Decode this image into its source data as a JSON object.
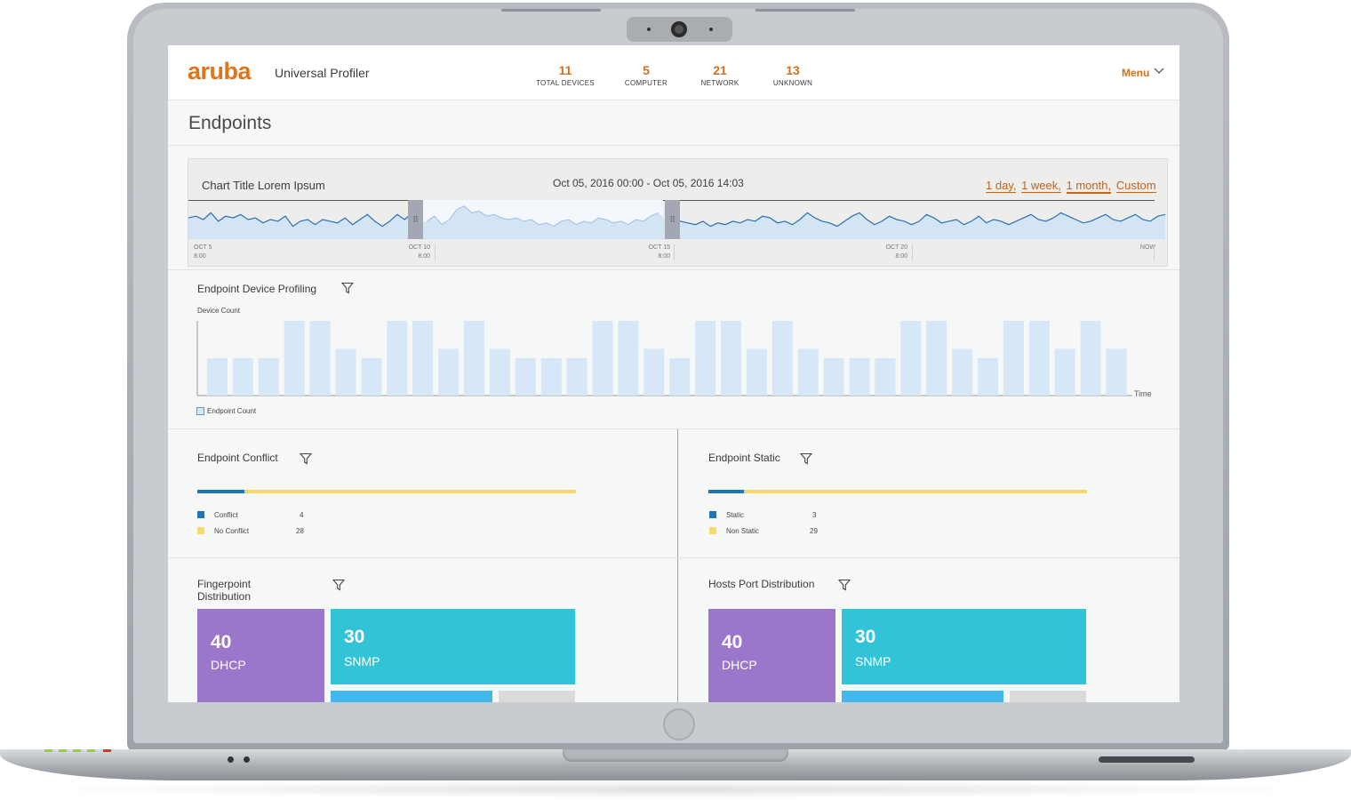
{
  "app": {
    "logo": "aruba",
    "title": "Universal Profiler"
  },
  "header_stats": [
    {
      "value": "11",
      "label": "TOTAL DEVICES"
    },
    {
      "value": "5",
      "label": "COMPUTER"
    },
    {
      "value": "21",
      "label": "NETWORK"
    },
    {
      "value": "13",
      "label": "UNKNOWN"
    }
  ],
  "menu": {
    "label": "Menu",
    "icon": "chevron-down-icon"
  },
  "page": {
    "title": "Endpoints"
  },
  "timeline": {
    "title": "Chart Title Lorem Ipsum",
    "range": "Oct 05, 2016 00:00 - Oct 05, 2016 14:03",
    "links": [
      "1 day,",
      "1 week,",
      "1 month,",
      "Custom"
    ],
    "active_link": "1 month,",
    "ticks": [
      {
        "l1": "OCT 5",
        "l2": "8:00"
      },
      {
        "l1": "OCT 10",
        "l2": "8:00"
      },
      {
        "l1": "OCT 15",
        "l2": "8:00"
      },
      {
        "l1": "OCT 20",
        "l2": "8:00"
      },
      {
        "l1": "NOW",
        "l2": ""
      }
    ],
    "colors": {
      "line": "#2a6fb3",
      "fill": "#d3e4f5",
      "selection": "#f4f8fc",
      "handle": "#a3a7b3"
    }
  },
  "profiling": {
    "title": "Endpoint Device Profiling",
    "ylabel": "Device Count",
    "xlabel": "Time",
    "legend": "Endpoint Count",
    "bar_color": "#d6e7f8"
  },
  "conflict": {
    "title": "Endpoint Conflict",
    "items": [
      {
        "label": "Conflict",
        "value": "4",
        "color": "#1b75bc"
      },
      {
        "label": "No Conflict",
        "value": "28",
        "color": "#f6d96b"
      }
    ]
  },
  "static": {
    "title": "Endpoint Static",
    "items": [
      {
        "label": "Static",
        "value": "3",
        "color": "#1b75bc"
      },
      {
        "label": "Non Static",
        "value": "29",
        "color": "#f6d96b"
      }
    ]
  },
  "fingerprint": {
    "title_l1": "Fingerpoint",
    "title_l2": "Distribution",
    "tiles": [
      {
        "value": "40",
        "label": "DHCP",
        "color": "#9b77cb"
      },
      {
        "value": "30",
        "label": "SNMP",
        "color": "#33c3d6"
      }
    ]
  },
  "hosts_port": {
    "title": "Hosts Port Distribution",
    "tiles": [
      {
        "value": "40",
        "label": "DHCP",
        "color": "#9b77cb"
      },
      {
        "value": "30",
        "label": "SNMP",
        "color": "#33c3d6"
      }
    ]
  },
  "chart_data": [
    {
      "type": "line",
      "title": "Chart Title Lorem Ipsum",
      "x_ticks": [
        "OCT 5 8:00",
        "OCT 10 8:00",
        "OCT 15 8:00",
        "OCT 20 8:00",
        "NOW"
      ],
      "series": [
        {
          "values": [
            0.55,
            0.6,
            0.5,
            0.7,
            0.45,
            0.6,
            0.55,
            0.65,
            0.5,
            0.55,
            0.4,
            0.5,
            0.45,
            0.6,
            0.3,
            0.45,
            0.5,
            0.35,
            0.5,
            0.45,
            0.4,
            0.55,
            0.35,
            0.5,
            0.65,
            0.45,
            0.3,
            0.45,
            0.65,
            0.5,
            0.7,
            0.4,
            0.45,
            0.6,
            0.35,
            0.5,
            0.8,
            0.9,
            0.7,
            0.75,
            0.6,
            0.65,
            0.55,
            0.5,
            0.55,
            0.45,
            0.5,
            0.35,
            0.4,
            0.3,
            0.45,
            0.5,
            0.35,
            0.45,
            0.4,
            0.55,
            0.5,
            0.4,
            0.45,
            0.35,
            0.5,
            0.45,
            0.6,
            0.7,
            0.5,
            0.55,
            0.45,
            0.4,
            0.35,
            0.45,
            0.3,
            0.4,
            0.35,
            0.45,
            0.4,
            0.5,
            0.45,
            0.6,
            0.55,
            0.4,
            0.45,
            0.35,
            0.5,
            0.7,
            0.55,
            0.45,
            0.4,
            0.3,
            0.45,
            0.6,
            0.7,
            0.5,
            0.35,
            0.45,
            0.6,
            0.5,
            0.45,
            0.35,
            0.45,
            0.65,
            0.55,
            0.4,
            0.45,
            0.5,
            0.35,
            0.45,
            0.6,
            0.4,
            0.5,
            0.45,
            0.35,
            0.45,
            0.55,
            0.65,
            0.5,
            0.45,
            0.55,
            0.7,
            0.6,
            0.5,
            0.4,
            0.45,
            0.55,
            0.65,
            0.5,
            0.45,
            0.55,
            0.65,
            0.5,
            0.45,
            0.6,
            0.65
          ]
        }
      ]
    },
    {
      "type": "bar",
      "title": "Endpoint Device Profiling",
      "ylabel": "Device Count",
      "xlabel": "Time",
      "legend": [
        "Endpoint Count"
      ],
      "series": [
        {
          "name": "Endpoint Count",
          "values": [
            2,
            2,
            2,
            4,
            4,
            2.5,
            2,
            4,
            4,
            2.5,
            4,
            2.5,
            2,
            2,
            2,
            4,
            4,
            2.5,
            2,
            4,
            4,
            2.5,
            4,
            2.5,
            2,
            2,
            2,
            4,
            4,
            2.5,
            2,
            4,
            4,
            2.5,
            4,
            2.5
          ]
        }
      ],
      "ylim": [
        0,
        4
      ]
    },
    {
      "type": "bar",
      "title": "Endpoint Conflict",
      "categories": [
        "Conflict",
        "No Conflict"
      ],
      "values": [
        4,
        28
      ]
    },
    {
      "type": "bar",
      "title": "Endpoint Static",
      "categories": [
        "Static",
        "Non Static"
      ],
      "values": [
        3,
        29
      ]
    }
  ]
}
